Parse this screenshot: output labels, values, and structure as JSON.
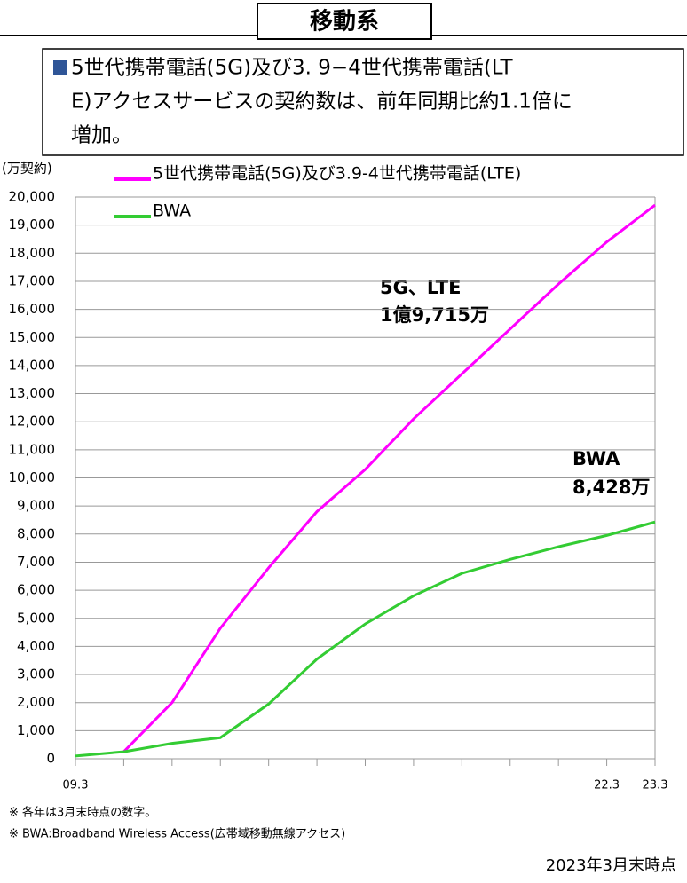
{
  "header": {
    "title": "移動系"
  },
  "summary": {
    "lines": [
      "5世代携帯電話(5G)及び3. 9−4世代携帯電話(LT",
      "E)アクセスサービスの契約数は、前年同期比約1.1倍に",
      "増加。"
    ]
  },
  "chart_data": {
    "type": "line",
    "y_label": "(万契約)",
    "categories": [
      "09.3",
      null,
      null,
      null,
      null,
      null,
      null,
      null,
      null,
      null,
      null,
      "22.3",
      "23.3"
    ],
    "series": [
      {
        "name": "5世代携帯電話(5G)及び3.9-4世代携帯電話(LTE)",
        "color": "#ff00ff",
        "values": [
          null,
          250,
          2000,
          4650,
          6800,
          8800,
          10300,
          12100,
          13700,
          15300,
          16900,
          18400,
          19715
        ]
      },
      {
        "name": "BWA",
        "color": "#33cc33",
        "values": [
          100,
          250,
          550,
          750,
          1950,
          3550,
          4800,
          5800,
          6600,
          7100,
          7550,
          7950,
          8428
        ]
      }
    ],
    "ylim": [
      0,
      20000
    ],
    "yticks": [
      0,
      {
        "value": 1000,
        "label": "1,000"
      },
      {
        "value": 2000,
        "label": "2,000"
      },
      {
        "value": 3000,
        "label": "3,000"
      },
      {
        "value": 4000,
        "label": "4,000"
      },
      {
        "value": 5000,
        "label": "5,000"
      },
      {
        "value": 6000,
        "label": "6,000"
      },
      {
        "value": 7000,
        "label": "7,000"
      },
      {
        "value": 8000,
        "label": "8,000"
      },
      {
        "value": 9000,
        "label": "9,000"
      },
      {
        "value": 10000,
        "label": "10,000"
      },
      {
        "value": 11000,
        "label": "11,000"
      },
      {
        "value": 12000,
        "label": "12,000"
      },
      {
        "value": 13000,
        "label": "13,000"
      },
      {
        "value": 14000,
        "label": "14,000"
      },
      {
        "value": 15000,
        "label": "15,000"
      },
      {
        "value": 16000,
        "label": "16,000"
      },
      {
        "value": 17000,
        "label": "17,000"
      },
      {
        "value": 18000,
        "label": "18,000"
      },
      {
        "value": 19000,
        "label": "19,000"
      },
      {
        "value": 20000,
        "label": "20,000"
      }
    ],
    "grid": true,
    "annotations": [
      "5G、LTE",
      "1億9,715万",
      "BWA",
      "8,428万"
    ]
  },
  "footnotes": [
    "※ 各年は3月末時点の数字。",
    "※ BWA:Broadband Wireless Access(広帯域移動無線アクセス)"
  ],
  "as_of": "2023年3月末時点"
}
